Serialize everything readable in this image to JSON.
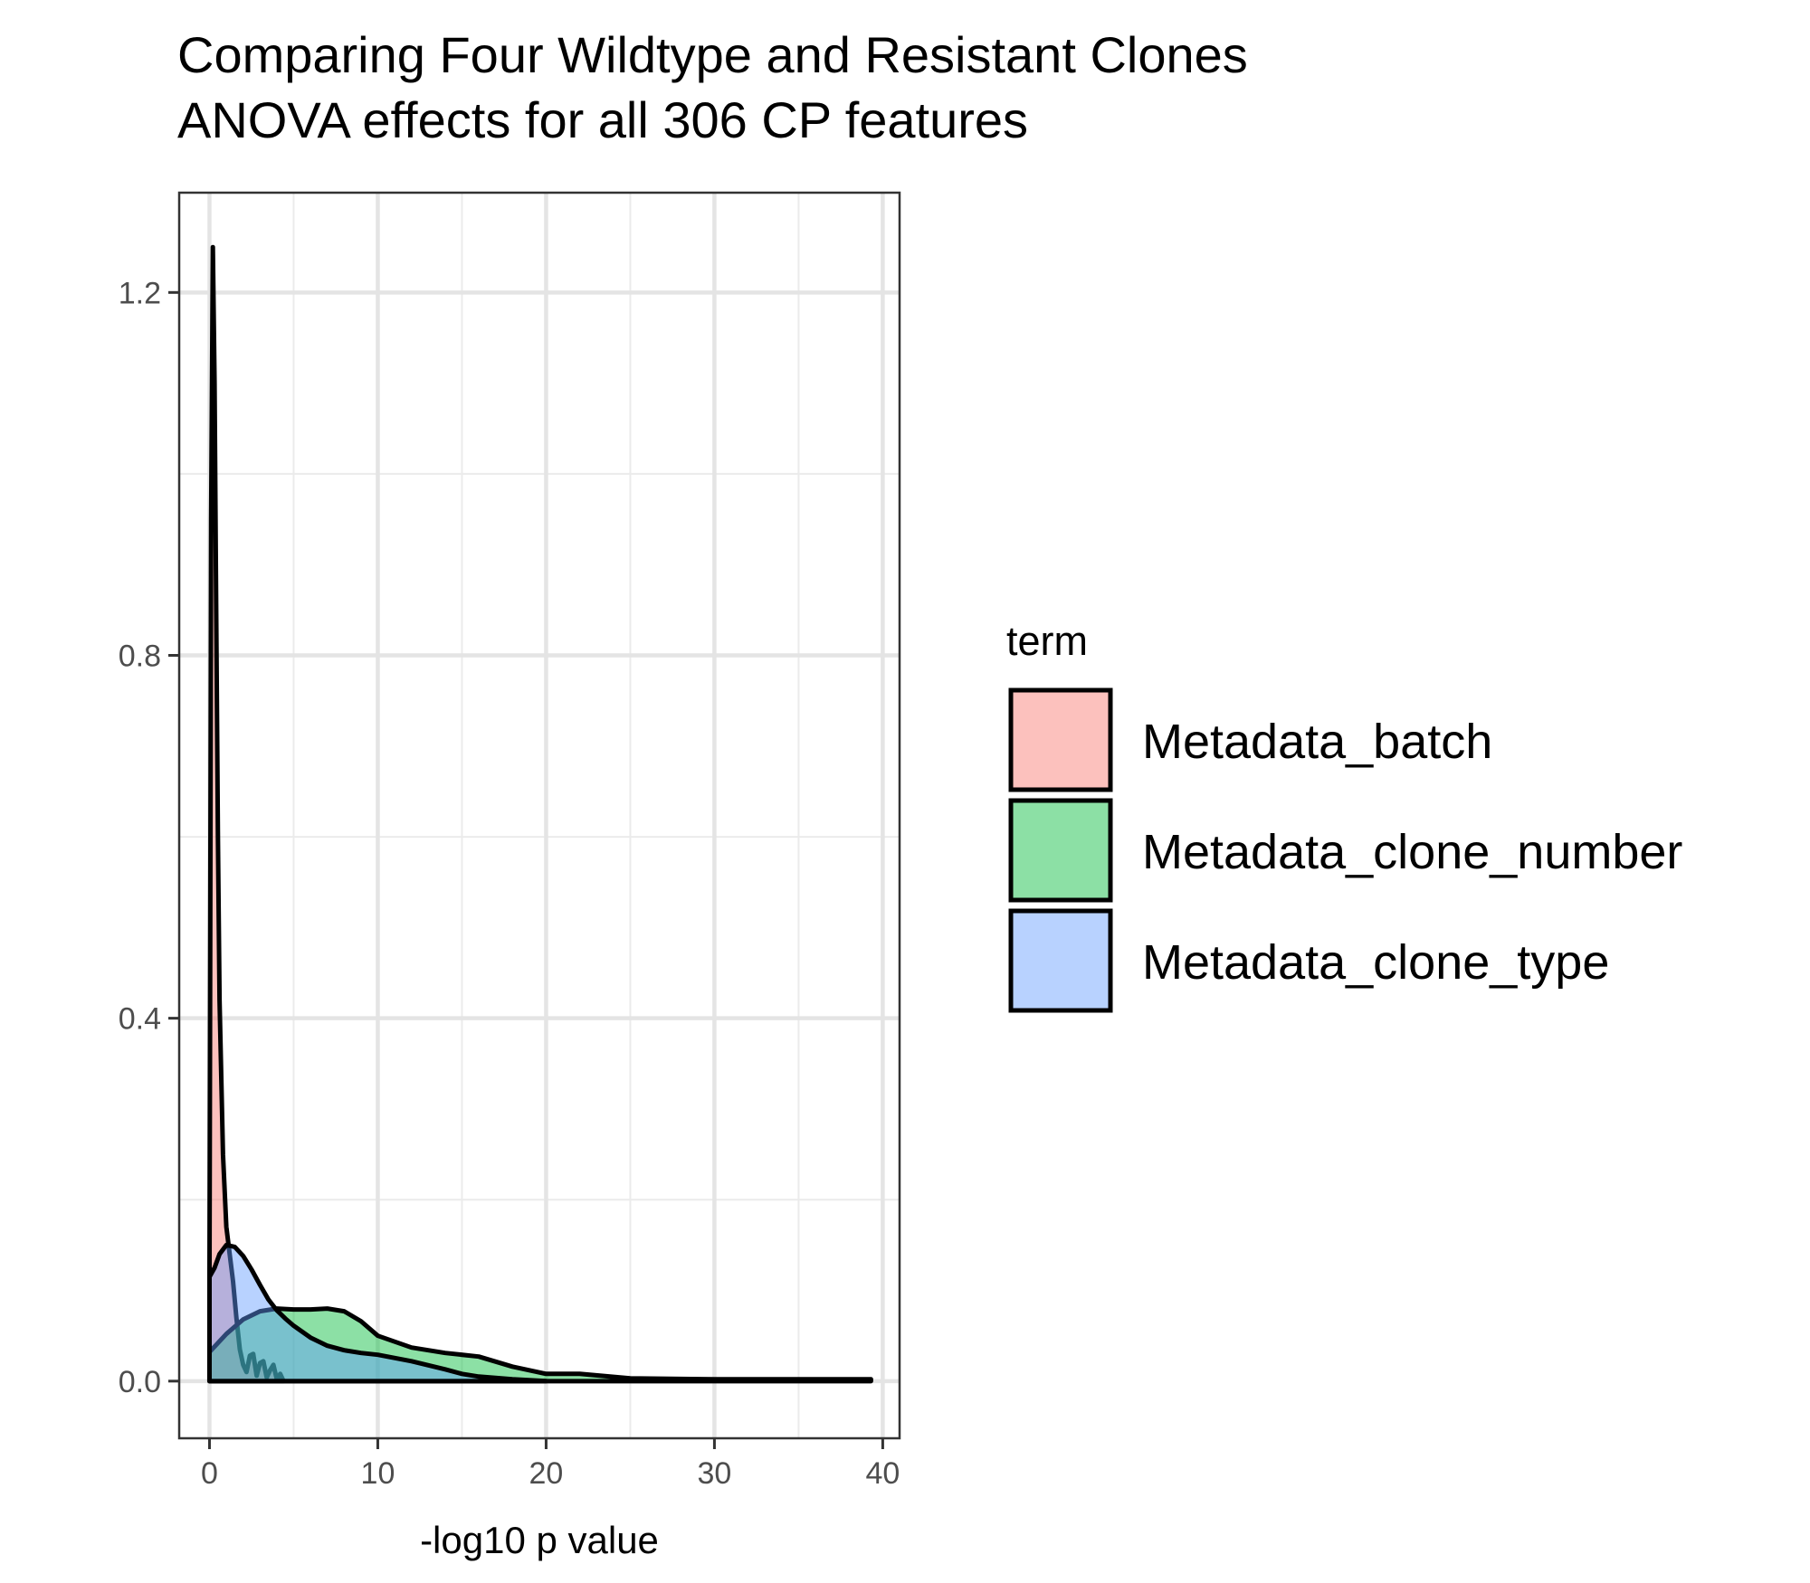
{
  "chart_data": {
    "type": "area",
    "title": "Comparing Four Wildtype and Resistant Clones",
    "subtitle": "ANOVA effects for all 306 CP features",
    "xlabel": "-log10 p value",
    "ylabel": "",
    "xlim": [
      -1.8,
      41
    ],
    "ylim": [
      -0.063,
      1.31
    ],
    "x_ticks": [
      0,
      10,
      20,
      30,
      40
    ],
    "x_tick_labels": [
      "0",
      "10",
      "20",
      "30",
      "40"
    ],
    "y_ticks": [
      0.0,
      0.4,
      0.8,
      1.2
    ],
    "y_tick_labels": [
      "0.0",
      "0.4",
      "0.8",
      "1.2"
    ],
    "grid": true,
    "legend": {
      "title": "term",
      "position": "right"
    },
    "series": [
      {
        "name": "Metadata_batch",
        "color": "#F8766D",
        "x": [
          0,
          0.1,
          0.2,
          0.3,
          0.4,
          0.5,
          0.6,
          0.8,
          1.0,
          1.2,
          1.4,
          1.6,
          1.8,
          2.0,
          2.2,
          2.4,
          2.6,
          2.8,
          3.0,
          3.2,
          3.4,
          3.6,
          3.8,
          4.0,
          4.2,
          4.4
        ],
        "y": [
          0.12,
          0.95,
          1.25,
          1.1,
          0.85,
          0.6,
          0.42,
          0.25,
          0.17,
          0.14,
          0.11,
          0.07,
          0.035,
          0.018,
          0.01,
          0.028,
          0.03,
          0.006,
          0.02,
          0.022,
          0.004,
          0.012,
          0.018,
          0.002,
          0.008,
          0.0
        ]
      },
      {
        "name": "Metadata_clone_number",
        "color": "#00BA38",
        "x": [
          0,
          0.5,
          1,
          2,
          3,
          4,
          5,
          6,
          7,
          8,
          9,
          10,
          12,
          14,
          16,
          18,
          20,
          22,
          25,
          30,
          35,
          39.3
        ],
        "y": [
          0.032,
          0.042,
          0.052,
          0.068,
          0.077,
          0.08,
          0.079,
          0.079,
          0.08,
          0.077,
          0.066,
          0.05,
          0.037,
          0.031,
          0.027,
          0.016,
          0.008,
          0.008,
          0.003,
          0.002,
          0.002,
          0.002
        ]
      },
      {
        "name": "Metadata_clone_type",
        "color": "#619CFF",
        "x": [
          0,
          0.3,
          0.6,
          1,
          1.5,
          2,
          2.5,
          3,
          3.5,
          4,
          4.5,
          5,
          6,
          7,
          8,
          9,
          10,
          12,
          14,
          15,
          16,
          18,
          20
        ],
        "y": [
          0.115,
          0.125,
          0.14,
          0.15,
          0.148,
          0.138,
          0.123,
          0.106,
          0.09,
          0.078,
          0.069,
          0.061,
          0.048,
          0.039,
          0.034,
          0.031,
          0.029,
          0.022,
          0.013,
          0.008,
          0.005,
          0.002,
          0.0
        ]
      }
    ]
  }
}
